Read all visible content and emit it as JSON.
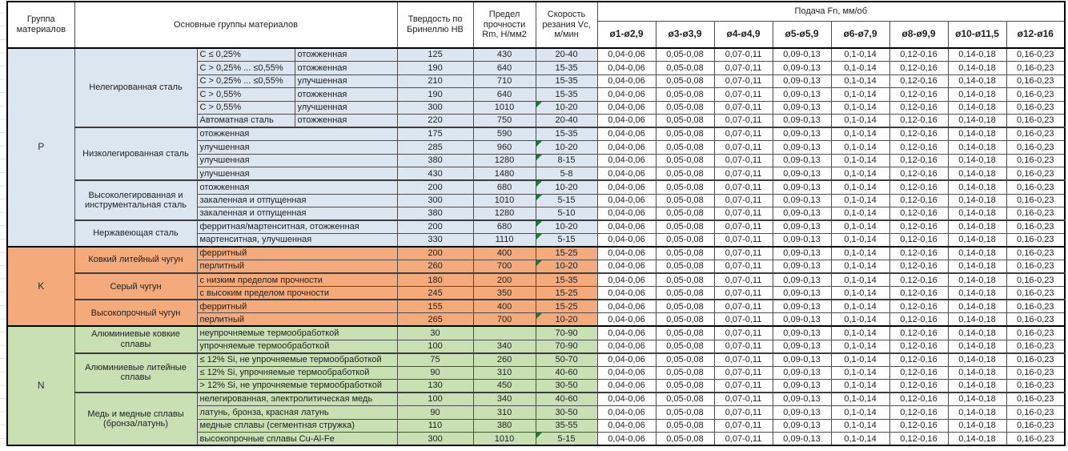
{
  "table": {
    "headers": {
      "group": "Группа материалов",
      "materials": "Основные группы материалов",
      "hardness": "Твердость по Бринеллю HB",
      "strength": "Предел прочности Rm, Н/мм2",
      "speed": "Скорость резания Vc, м/мин",
      "feed": "Подача Fn, мм/об",
      "diameters": [
        "ø1-ø2,9",
        "ø3-ø3,9",
        "ø4-ø4,9",
        "ø5-ø5,9",
        "ø6-ø7,9",
        "ø8-ø9,9",
        "ø10-ø11,5",
        "ø12-ø16"
      ]
    },
    "feed_values": [
      "0,04-0,06",
      "0,05-0,08",
      "0,07-0,11",
      "0,09-0,13",
      "0,1-0,14",
      "0,12-0,16",
      "0,14-0,18",
      "0,16-0,23"
    ],
    "groups": [
      {
        "letter": "P",
        "bg": "#dce6f1",
        "subgroups": [
          {
            "name": "Нелегированная сталь",
            "rows": [
              {
                "c1": "C ≤ 0,25%",
                "c2": "отожженная",
                "hb": "125",
                "rm": "430",
                "vc": "20-40",
                "f": false
              },
              {
                "c1": "C > 0,25% ... ≤0,55%",
                "c2": "отожженная",
                "hb": "190",
                "rm": "640",
                "vc": "15-35",
                "f": false
              },
              {
                "c1": "C > 0,25% ... ≤0,55%",
                "c2": "улучшенная",
                "hb": "210",
                "rm": "710",
                "vc": "15-35",
                "f": false
              },
              {
                "c1": "C > 0,55%",
                "c2": "отожженная",
                "hb": "190",
                "rm": "640",
                "vc": "15-35",
                "f": false
              },
              {
                "c1": "C > 0,55%",
                "c2": "улучшенная",
                "hb": "300",
                "rm": "1010",
                "vc": "10-20",
                "f": true
              },
              {
                "c1": "Автоматная сталь",
                "c2": "отожженная",
                "hb": "220",
                "rm": "750",
                "vc": "20-40",
                "f": false
              }
            ]
          },
          {
            "name": "Низколегированная сталь",
            "rows": [
              {
                "c1": "отожженная",
                "hb": "175",
                "rm": "590",
                "vc": "15-35",
                "f": false
              },
              {
                "c1": "улучшенная",
                "hb": "285",
                "rm": "960",
                "vc": "10-20",
                "f": true
              },
              {
                "c1": "улучшенная",
                "hb": "380",
                "rm": "1280",
                "vc": "8-15",
                "f": true
              },
              {
                "c1": "улучшенная",
                "hb": "430",
                "rm": "1480",
                "vc": "5-8",
                "f": false
              }
            ]
          },
          {
            "name": "Высоколегированная и инструментальная сталь",
            "rows": [
              {
                "c1": "отожженная",
                "hb": "200",
                "rm": "680",
                "vc": "10-20",
                "f": true
              },
              {
                "c1": "закаленная и отпущенная",
                "hb": "300",
                "rm": "1010",
                "vc": "5-15",
                "f": true
              },
              {
                "c1": "закаленная и отпущенная",
                "hb": "380",
                "rm": "1280",
                "vc": "5-10",
                "f": false
              }
            ]
          },
          {
            "name": "Нержавеющая сталь",
            "rows": [
              {
                "c1": "ферритная/мартенситная, отожженная",
                "hb": "200",
                "rm": "680",
                "vc": "10-20",
                "f": true
              },
              {
                "c1": "мартенситная, улучшенная",
                "hb": "330",
                "rm": "1110",
                "vc": "5-15",
                "f": true
              }
            ]
          }
        ]
      },
      {
        "letter": "K",
        "bg": "#f4aa7b",
        "subgroups": [
          {
            "name": "Ковкий литейный чугун",
            "rows": [
              {
                "c1": "ферритный",
                "hb": "200",
                "rm": "400",
                "vc": "15-25",
                "f": false
              },
              {
                "c1": "перлитный",
                "hb": "260",
                "rm": "700",
                "vc": "10-20",
                "f": true
              }
            ]
          },
          {
            "name": "Серый чугун",
            "rows": [
              {
                "c1": "с низким пределом прочности",
                "hb": "180",
                "rm": "200",
                "vc": "15-35",
                "f": false
              },
              {
                "c1": "с высоким пределом прочности",
                "hb": "245",
                "rm": "350",
                "vc": "15-25",
                "f": false
              }
            ]
          },
          {
            "name": "Высокопрочный чугун",
            "rows": [
              {
                "c1": "ферритный",
                "hb": "155",
                "rm": "400",
                "vc": "15-25",
                "f": false
              },
              {
                "c1": "перлитный",
                "hb": "265",
                "rm": "700",
                "vc": "10-20",
                "f": true
              }
            ]
          }
        ]
      },
      {
        "letter": "N",
        "bg": "#c8e0b3",
        "subgroups": [
          {
            "name": "Алюминиевые ковкие сплавы",
            "rows": [
              {
                "c1": "неупрочняемые термообработкой",
                "hb": "30",
                "rm": "",
                "vc": "70-90",
                "f": false
              },
              {
                "c1": "упрочняемые термообработкой",
                "hb": "100",
                "rm": "340",
                "vc": "70-90",
                "f": false
              }
            ]
          },
          {
            "name": "Алюминиевые литейные сплавы",
            "rows": [
              {
                "c1": "≤ 12% Si, не упрочняемые термообработкой",
                "hb": "75",
                "rm": "260",
                "vc": "50-70",
                "f": false
              },
              {
                "c1": "≤ 12% Si, упрочняемые термообработкой",
                "hb": "90",
                "rm": "310",
                "vc": "40-60",
                "f": false
              },
              {
                "c1": "> 12% Si, не упрочняемые термообработкой",
                "hb": "130",
                "rm": "450",
                "vc": "30-50",
                "f": false
              }
            ]
          },
          {
            "name": "Медь и медные сплавы (бронза/латунь)",
            "rows": [
              {
                "c1": "нелегированная, электролитическая медь",
                "hb": "100",
                "rm": "340",
                "vc": "40-60",
                "f": false
              },
              {
                "c1": "латунь, бронза, красная латунь",
                "hb": "90",
                "rm": "310",
                "vc": "30-50",
                "f": false
              },
              {
                "c1": "медные сплавы (сегментная стружка)",
                "hb": "110",
                "rm": "380",
                "vc": "35-55",
                "f": false
              },
              {
                "c1": "высокопрочные сплавы Cu-Al-Fe",
                "hb": "300",
                "rm": "1010",
                "vc": "5-15",
                "f": true
              }
            ]
          }
        ]
      }
    ]
  },
  "colors": {
    "group_p": "#dce6f1",
    "group_k": "#f4aa7b",
    "group_n": "#c8e0b3",
    "flag": "#1e7b34"
  }
}
